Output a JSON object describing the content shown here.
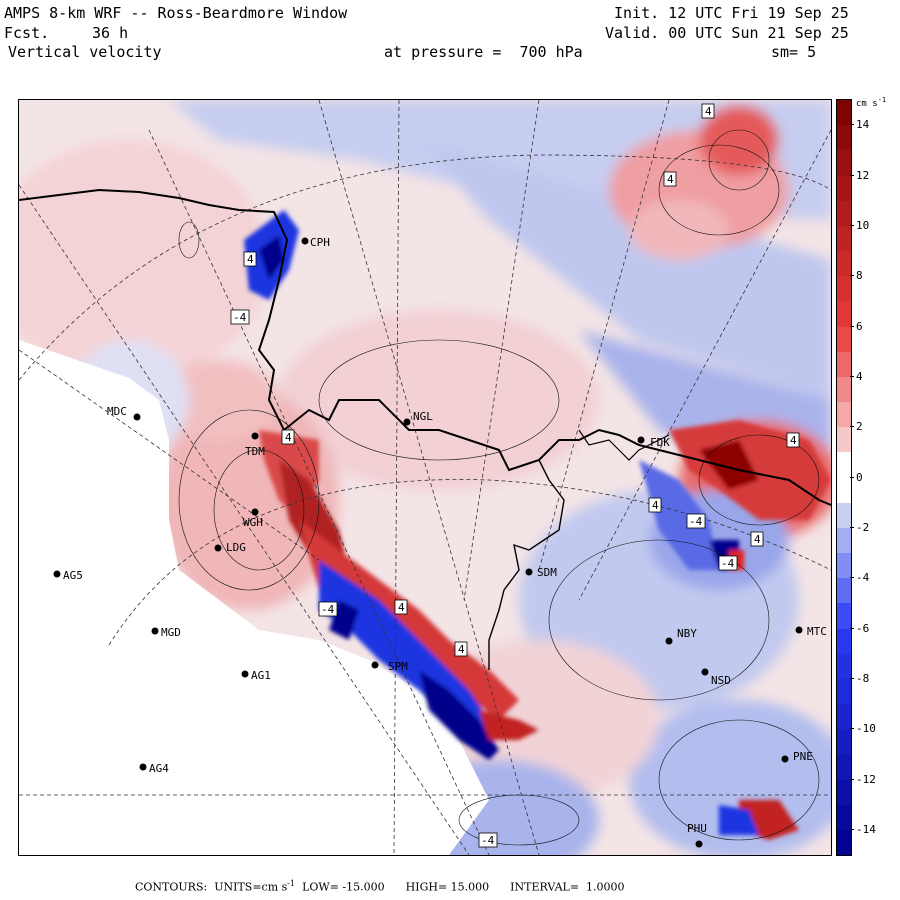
{
  "header": {
    "title": "AMPS 8-km WRF -- Ross-Beardmore Window",
    "forecast_label": "Fcst.",
    "forecast_hours": "36 h",
    "field": "Vertical velocity",
    "init": "Init. 12 UTC Fri 19 Sep 25",
    "valid": "Valid. 00 UTC Sun 21 Sep 25",
    "pressure_text": "at pressure =  700 hPa",
    "smoothing": "sm= 5"
  },
  "colorbar": {
    "units_base": "cm s",
    "units_exp": "-1",
    "ticks": [
      "14",
      "12",
      "10",
      "8",
      "6",
      "4",
      "2",
      "0",
      "-2",
      "-4",
      "-6",
      "-8",
      "-10",
      "-12",
      "-14"
    ],
    "tick_values": [
      14,
      12,
      10,
      8,
      6,
      4,
      2,
      0,
      -2,
      -4,
      -6,
      -8,
      -10,
      -12,
      -14
    ],
    "range": [
      -15,
      15
    ],
    "colors": {
      "neg_strong": "#00008b",
      "neg_mid": "#2a3bf5",
      "neg_light": "#c9cff2",
      "zero": "#ffffff",
      "pos_light": "#f7c8c8",
      "pos_mid": "#e83a3a",
      "pos_strong": "#7a0000"
    }
  },
  "stations": [
    {
      "id": "CPH",
      "x_label": "CPH"
    },
    {
      "id": "MDC",
      "x_label": "MDC"
    },
    {
      "id": "NGL",
      "x_label": "NGL"
    },
    {
      "id": "FDK",
      "x_label": "FDK"
    },
    {
      "id": "SDM",
      "x_label": "SDM"
    },
    {
      "id": "AG5",
      "x_label": "AG5"
    },
    {
      "id": "MGD",
      "x_label": "MGD"
    },
    {
      "id": "AG1",
      "x_label": "AG1"
    },
    {
      "id": "AG4",
      "x_label": "AG4"
    },
    {
      "id": "NBY",
      "x_label": "NBY"
    },
    {
      "id": "MTC",
      "x_label": "MTC"
    },
    {
      "id": "NSD",
      "x_label": "NSD"
    },
    {
      "id": "PNE",
      "x_label": "PNE"
    },
    {
      "id": "PHU",
      "x_label": "PHU"
    },
    {
      "id": "LDG",
      "x_label": "LDG"
    },
    {
      "id": "WGH",
      "x_label": "WGH"
    },
    {
      "id": "TDM",
      "x_label": "TDM"
    },
    {
      "id": "SPM",
      "x_label": "SPM"
    }
  ],
  "contour_labels": [
    "4",
    "4",
    "4",
    "4",
    "4",
    "4",
    "4",
    "4",
    "4",
    "-4",
    "-4",
    "-4",
    "-4",
    "-4"
  ],
  "footer": {
    "contours": "CONTOURS:",
    "units_label": "UNITS=cm s",
    "units_exp": "-1",
    "low": "LOW= -15.000",
    "high": "HIGH= 15.000",
    "interval": "INTERVAL=  1.0000"
  }
}
